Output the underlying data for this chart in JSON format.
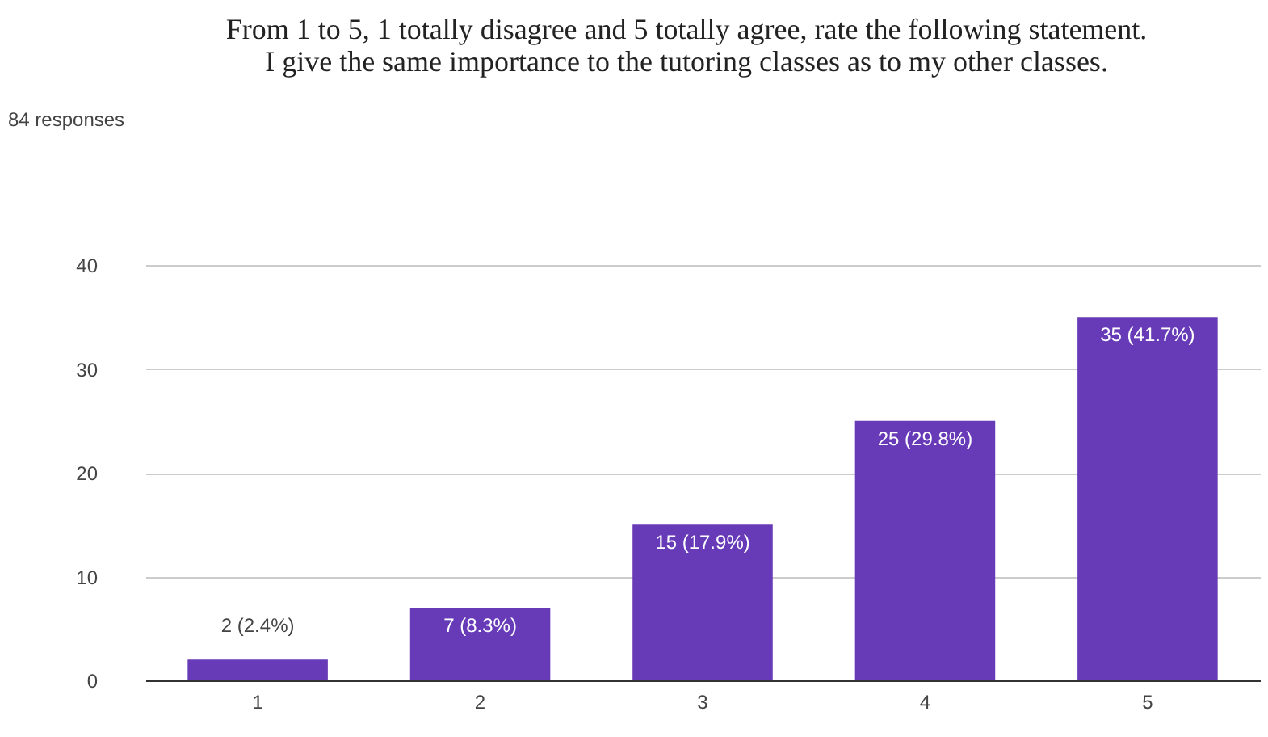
{
  "chart_data": {
    "type": "bar",
    "title": [
      "From 1 to 5, 1 totally disagree and 5 totally agree, rate the following statement.",
      "I give the same importance to the tutoring classes as to my other classes."
    ],
    "annotations": [
      "84 responses"
    ],
    "categories": [
      "1",
      "2",
      "3",
      "4",
      "5"
    ],
    "values": [
      2,
      7,
      15,
      25,
      35
    ],
    "value_labels": [
      "2 (2.4%)",
      "7 (8.3%)",
      "15 (17.9%)",
      "25 (29.8%)",
      "35 (41.7%)"
    ],
    "color": "#673ab7",
    "ylim": [
      0,
      40
    ],
    "yticks": [
      0,
      10,
      20,
      30,
      40
    ],
    "grid": "y"
  }
}
